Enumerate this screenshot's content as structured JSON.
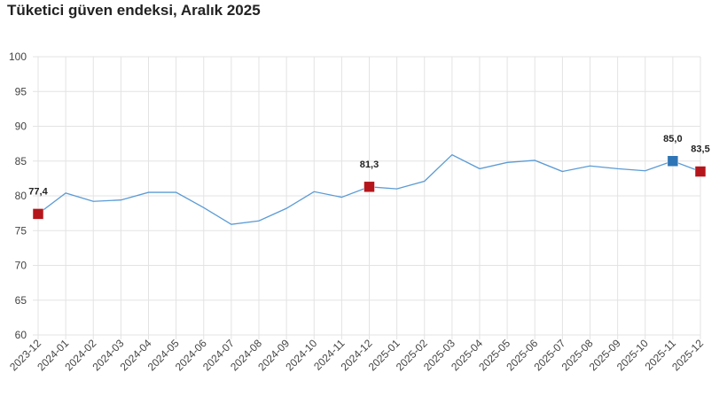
{
  "chart_data": {
    "type": "line",
    "title": "Tüketici güven endeksi, Aralık 2025",
    "xlabel": "",
    "ylabel": "",
    "ylim": [
      60,
      100
    ],
    "yticks": [
      60,
      65,
      70,
      75,
      80,
      85,
      90,
      95,
      100
    ],
    "grid": true,
    "categories": [
      "2023-12",
      "2024-01",
      "2024-02",
      "2024-03",
      "2024-04",
      "2024-05",
      "2024-06",
      "2024-07",
      "2024-08",
      "2024-09",
      "2024-10",
      "2024-11",
      "2024-12",
      "2025-01",
      "2025-02",
      "2025-03",
      "2025-04",
      "2025-05",
      "2025-06",
      "2025-07",
      "2025-08",
      "2025-09",
      "2025-10",
      "2025-11",
      "2025-12"
    ],
    "series": [
      {
        "values": [
          77.4,
          80.4,
          79.2,
          79.4,
          80.5,
          80.5,
          78.3,
          75.9,
          76.4,
          78.2,
          80.6,
          79.8,
          81.3,
          81.0,
          82.1,
          85.9,
          83.9,
          84.8,
          85.1,
          83.5,
          84.3,
          83.9,
          83.6,
          85.0,
          83.5
        ],
        "color": "#5b9bd5"
      }
    ],
    "highlights": [
      {
        "category": "2023-12",
        "label": "77,4",
        "color": "#b5161b"
      },
      {
        "category": "2024-12",
        "label": "81,3",
        "color": "#b5161b"
      },
      {
        "category": "2025-11",
        "label": "85,0",
        "color": "#2e75b6"
      },
      {
        "category": "2025-12",
        "label": "83,5",
        "color": "#b5161b"
      }
    ]
  }
}
